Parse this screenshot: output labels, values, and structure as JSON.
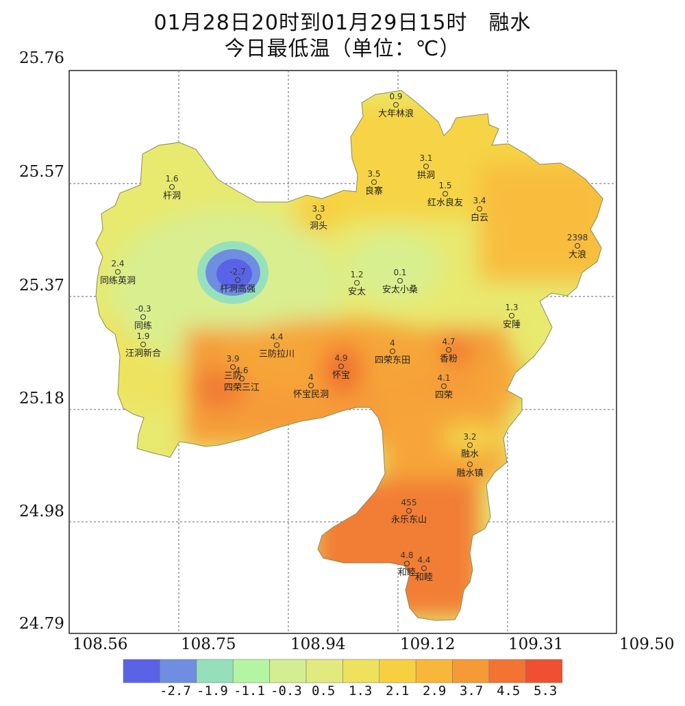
{
  "title": {
    "line1": "01月28日20时到01月29日15时　融水",
    "line2": "今日最低温（单位：℃）"
  },
  "axes": {
    "y_ticks": [
      "25.76",
      "25.57",
      "25.37",
      "25.18",
      "24.98",
      "24.79"
    ],
    "x_ticks": [
      "108.56",
      "108.75",
      "108.94",
      "109.12",
      "109.31",
      "109.50"
    ]
  },
  "legend": {
    "colors": [
      "#5a63e6",
      "#6f8ee2",
      "#95dfbb",
      "#b4f5a2",
      "#d3ee91",
      "#e1ea7e",
      "#ede15d",
      "#f6d041",
      "#f8b73b",
      "#f69a36",
      "#f27332",
      "#ef5030"
    ],
    "labels": [
      "-2.7",
      "-1.9",
      "-1.1",
      "-0.3",
      "0.5",
      "1.3",
      "2.1",
      "2.9",
      "3.7",
      "4.5",
      "5.3"
    ]
  },
  "map_data": {
    "lon_range": [
      108.56,
      109.5
    ],
    "lat_range": [
      24.79,
      25.76
    ],
    "stations": [
      {
        "name": "大年林浪",
        "value": "0.9"
      },
      {
        "name": "拱洞",
        "value": "3.1"
      },
      {
        "name": "良寨",
        "value": "3.5"
      },
      {
        "name": "红水良友",
        "value": "1.5"
      },
      {
        "name": "杆洞",
        "value": "1.6"
      },
      {
        "name": "洞头",
        "value": "3.3"
      },
      {
        "name": "白云",
        "value": "3.4"
      },
      {
        "name": "大浪",
        "value": "2398"
      },
      {
        "name": "同练英洞",
        "value": "2.4"
      },
      {
        "name": "杆洞高强",
        "value": "-2.7"
      },
      {
        "name": "安太",
        "value": "1.2"
      },
      {
        "name": "安太小桑",
        "value": "0.1"
      },
      {
        "name": "同练",
        "value": "-0.3"
      },
      {
        "name": "安陲",
        "value": "1.3"
      },
      {
        "name": "汪洞新合",
        "value": "1.9"
      },
      {
        "name": "三防拉川",
        "value": "4.4"
      },
      {
        "name": "四荣东田",
        "value": "4"
      },
      {
        "name": "香粉",
        "value": "4.7"
      },
      {
        "name": "三防",
        "value": "3.9"
      },
      {
        "name": "四荣三江",
        "value": "4.6"
      },
      {
        "name": "怀宝",
        "value": "4.9"
      },
      {
        "name": "怀宝民洞",
        "value": "4"
      },
      {
        "name": "四荣",
        "value": "4.1"
      },
      {
        "name": "融水",
        "value": "3.2"
      },
      {
        "name": "融水镇",
        "value": ""
      },
      {
        "name": "永乐东山",
        "value": "455"
      },
      {
        "name": "和睦",
        "value": "4.8"
      },
      {
        "name": "和睦",
        "value": "4.4"
      }
    ]
  }
}
